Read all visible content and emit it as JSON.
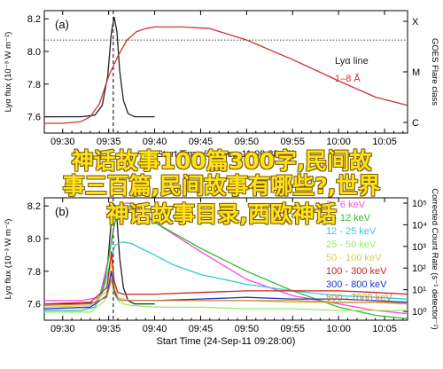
{
  "overlay": {
    "line1": "神话故事100篇300字,民间故",
    "line2": "事三百篇,民间故事有哪些?,世界",
    "line3": "神话故事目录,西欧神话"
  },
  "chart_data": [
    {
      "type": "line",
      "panel_label": "(a)",
      "x_ticks": [
        "09:30",
        "09:35",
        "09:40",
        "09:45",
        "09:50",
        "09:55",
        "10:00",
        "10:05"
      ],
      "xlabel": "Start Time (24-Sep-11 09:28:00)",
      "ylabel": "Lyα flux (10⁻³ W m⁻²)",
      "y_ticks": [
        "7.6",
        "7.8",
        "8.0",
        "8.2"
      ],
      "ylim": [
        7.5,
        8.25
      ],
      "xlim_minutes": [
        28,
        67.5
      ],
      "right_axis_label": "GOES Flare class",
      "right_ticks": [
        "C",
        "M",
        "X"
      ],
      "flare_dashed_minute": 35.5,
      "hline_y": 8.07,
      "legend_position": "right",
      "series": [
        {
          "name": "Lyα line",
          "color": "#222222",
          "x": [
            28,
            32,
            33.5,
            34.3,
            34.9,
            35.3,
            35.6,
            35.9,
            36.2,
            36.6,
            37.1,
            37.8,
            38.8,
            40
          ],
          "y": [
            7.6,
            7.6,
            7.61,
            7.67,
            7.85,
            8.12,
            8.21,
            8.12,
            7.88,
            7.7,
            7.62,
            7.6,
            7.6,
            7.6
          ]
        },
        {
          "name": "1–8 Å",
          "color": "#cc3333",
          "x": [
            28,
            30,
            32,
            33,
            34,
            35,
            36,
            37,
            38,
            39,
            40,
            43,
            46,
            50,
            55,
            60,
            64,
            67.5
          ],
          "y": [
            7.56,
            7.56,
            7.57,
            7.6,
            7.68,
            7.85,
            7.97,
            8.07,
            8.12,
            8.14,
            8.15,
            8.15,
            8.14,
            8.07,
            7.95,
            7.82,
            7.72,
            7.67
          ]
        }
      ]
    },
    {
      "type": "line",
      "panel_label": "(b)",
      "x_ticks": [
        "09:30",
        "09:35",
        "09:40",
        "09:45",
        "09:50",
        "09:55",
        "10:00",
        "10:05"
      ],
      "xlabel": "Start Time (24-Sep-11 09:28:00)",
      "ylabel": "Lyα flux (10⁻³ W m⁻²)",
      "y_ticks": [
        "7.6",
        "7.8",
        "8.0",
        "8.2"
      ],
      "ylim": [
        7.5,
        8.25
      ],
      "xlim_minutes": [
        28,
        67.5
      ],
      "right_axis_label": "Corrected Count Rate (s⁻¹ detector⁻¹)",
      "right_ticks": [
        "10⁰",
        "10¹",
        "10²",
        "10³",
        "10⁴",
        "10⁵"
      ],
      "flare_dashed_minute": 35.5,
      "legend_position": "top-right",
      "series": [
        {
          "name": "Lyα line",
          "color": "#222222",
          "x": [
            28,
            32,
            33.5,
            34.3,
            34.9,
            35.3,
            35.6,
            35.9,
            36.2,
            36.6,
            37.1,
            37.8,
            38.8,
            40
          ],
          "y": [
            7.6,
            7.6,
            7.61,
            7.67,
            7.85,
            8.12,
            8.21,
            8.12,
            7.88,
            7.7,
            7.62,
            7.6,
            7.6,
            7.6
          ]
        },
        {
          "name": "3 - 6 keV",
          "color": "#ff44dd",
          "x": [
            28,
            32,
            34,
            35,
            35.5,
            36.2,
            37,
            38,
            40,
            45,
            50,
            55,
            60,
            64,
            67.5
          ],
          "y": [
            7.62,
            7.62,
            7.64,
            7.88,
            8.06,
            8.2,
            8.22,
            8.2,
            8.1,
            7.92,
            7.75,
            7.65,
            7.6,
            7.56,
            7.54
          ]
        },
        {
          "name": "6 - 12 keV",
          "color": "#33bb33",
          "x": [
            28,
            32,
            33.5,
            34.5,
            35.3,
            35.8,
            36.3,
            37,
            38,
            40,
            45,
            50,
            55,
            60,
            64,
            67.5
          ],
          "y": [
            7.56,
            7.56,
            7.58,
            7.72,
            7.98,
            8.14,
            8.2,
            8.2,
            8.18,
            8.1,
            7.94,
            7.8,
            7.68,
            7.58,
            7.53,
            7.51
          ]
        },
        {
          "name": "12 - 25 keV",
          "color": "#33cccc",
          "x": [
            28,
            32,
            33.5,
            34.5,
            35.2,
            35.7,
            36.5,
            37.5,
            38.5,
            40,
            42,
            45,
            50,
            55,
            60,
            64,
            67.5
          ],
          "y": [
            7.56,
            7.56,
            7.58,
            7.7,
            7.86,
            7.96,
            7.98,
            7.97,
            7.94,
            7.9,
            7.84,
            7.78,
            7.72,
            7.68,
            7.65,
            7.64,
            7.63
          ]
        },
        {
          "name": "25 - 50 keV",
          "color": "#99ee66",
          "x": [
            28,
            33,
            34.6,
            35.2,
            35.6,
            36,
            36.6,
            37.5,
            40,
            45,
            50,
            55,
            60,
            64,
            67.5
          ],
          "y": [
            7.55,
            7.55,
            7.62,
            7.8,
            7.7,
            7.62,
            7.6,
            7.59,
            7.58,
            7.58,
            7.57,
            7.57,
            7.56,
            7.56,
            7.56
          ]
        },
        {
          "name": "50 - 100 keV",
          "color": "#ddcc55",
          "x": [
            28,
            33,
            34.8,
            35.3,
            35.6,
            36,
            36.6,
            37.5,
            40,
            45,
            50,
            55,
            60,
            64,
            67.5
          ],
          "y": [
            7.58,
            7.59,
            7.68,
            7.86,
            7.72,
            7.64,
            7.63,
            7.62,
            7.62,
            7.62,
            7.62,
            7.61,
            7.61,
            7.61,
            7.61
          ]
        },
        {
          "name": "100 - 300 keV",
          "color": "#cc2222",
          "x": [
            28,
            33,
            34.8,
            35.3,
            35.6,
            36,
            36.6,
            37.5,
            40,
            45,
            50,
            55,
            60,
            64,
            67.5
          ],
          "y": [
            7.6,
            7.61,
            7.7,
            7.92,
            7.74,
            7.67,
            7.66,
            7.66,
            7.66,
            7.67,
            7.68,
            7.68,
            7.68,
            7.67,
            7.66
          ]
        },
        {
          "name": "300 - 800 keV",
          "color": "#2233cc",
          "x": [
            28,
            33,
            34.8,
            35.3,
            35.6,
            36,
            36.6,
            37.5,
            40,
            45,
            50,
            55,
            60,
            64,
            67.5
          ],
          "y": [
            7.57,
            7.58,
            7.65,
            7.8,
            7.68,
            7.63,
            7.62,
            7.62,
            7.62,
            7.63,
            7.64,
            7.63,
            7.63,
            7.62,
            7.61
          ]
        },
        {
          "name": "800 - 7000 keV",
          "color": "#cc8833",
          "x": [
            28,
            33,
            34.8,
            35.3,
            35.6,
            36,
            36.6,
            37.5,
            40,
            45,
            50,
            55,
            60,
            64,
            67.5
          ],
          "y": [
            7.59,
            7.6,
            7.64,
            7.75,
            7.66,
            7.63,
            7.62,
            7.62,
            7.62,
            7.62,
            7.62,
            7.62,
            7.61,
            7.61,
            7.6
          ]
        }
      ]
    }
  ]
}
